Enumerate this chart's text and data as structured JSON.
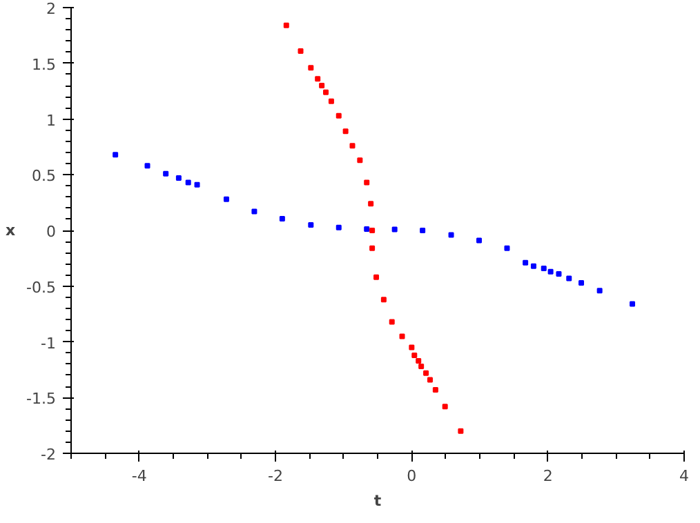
{
  "chart_data": {
    "type": "scatter",
    "xlabel": "t",
    "ylabel": "x",
    "marker": "square",
    "grid": false,
    "xlim": [
      -5,
      4
    ],
    "ylim": [
      -2,
      2
    ],
    "xticks": [
      -4,
      -2,
      0,
      2,
      4
    ],
    "yticks": [
      -2,
      -1.5,
      -1,
      -0.5,
      0,
      0.5,
      1,
      1.5,
      2
    ],
    "series": [
      {
        "color": "#0000ff",
        "x": [
          -4.35,
          -3.88,
          -3.61,
          -3.42,
          -3.28,
          -3.15,
          -2.72,
          -2.31,
          -1.9,
          -1.48,
          -1.07,
          -0.66,
          -0.25,
          0.16,
          0.58,
          0.99,
          1.4,
          1.67,
          1.79,
          1.94,
          2.04,
          2.16,
          2.31,
          2.49,
          2.76,
          3.24
        ],
        "values": [
          0.68,
          0.58,
          0.51,
          0.47,
          0.43,
          0.41,
          0.28,
          0.17,
          0.105,
          0.05,
          0.026,
          0.013,
          0.01,
          0,
          -0.04,
          -0.09,
          -0.16,
          -0.29,
          -0.32,
          -0.34,
          -0.37,
          -0.39,
          -0.43,
          -0.47,
          -0.54,
          -0.66
        ]
      },
      {
        "color": "#ff0000",
        "x": [
          -1.84,
          -1.63,
          -1.48,
          -1.38,
          -1.32,
          -1.26,
          -1.18,
          -1.07,
          -0.97,
          -0.87,
          -0.76,
          -0.66,
          -0.6,
          -0.58,
          -0.58,
          -0.52,
          -0.41,
          -0.29,
          -0.14,
          0,
          0.04,
          0.1,
          0.14,
          0.21,
          0.27,
          0.35,
          0.49,
          0.72
        ],
        "values": [
          1.84,
          1.61,
          1.46,
          1.36,
          1.3,
          1.24,
          1.16,
          1.03,
          0.89,
          0.76,
          0.63,
          0.43,
          0.24,
          0,
          -0.16,
          -0.42,
          -0.62,
          -0.82,
          -0.95,
          -1.05,
          -1.12,
          -1.17,
          -1.22,
          -1.28,
          -1.34,
          -1.43,
          -1.58,
          -1.8
        ]
      }
    ]
  }
}
